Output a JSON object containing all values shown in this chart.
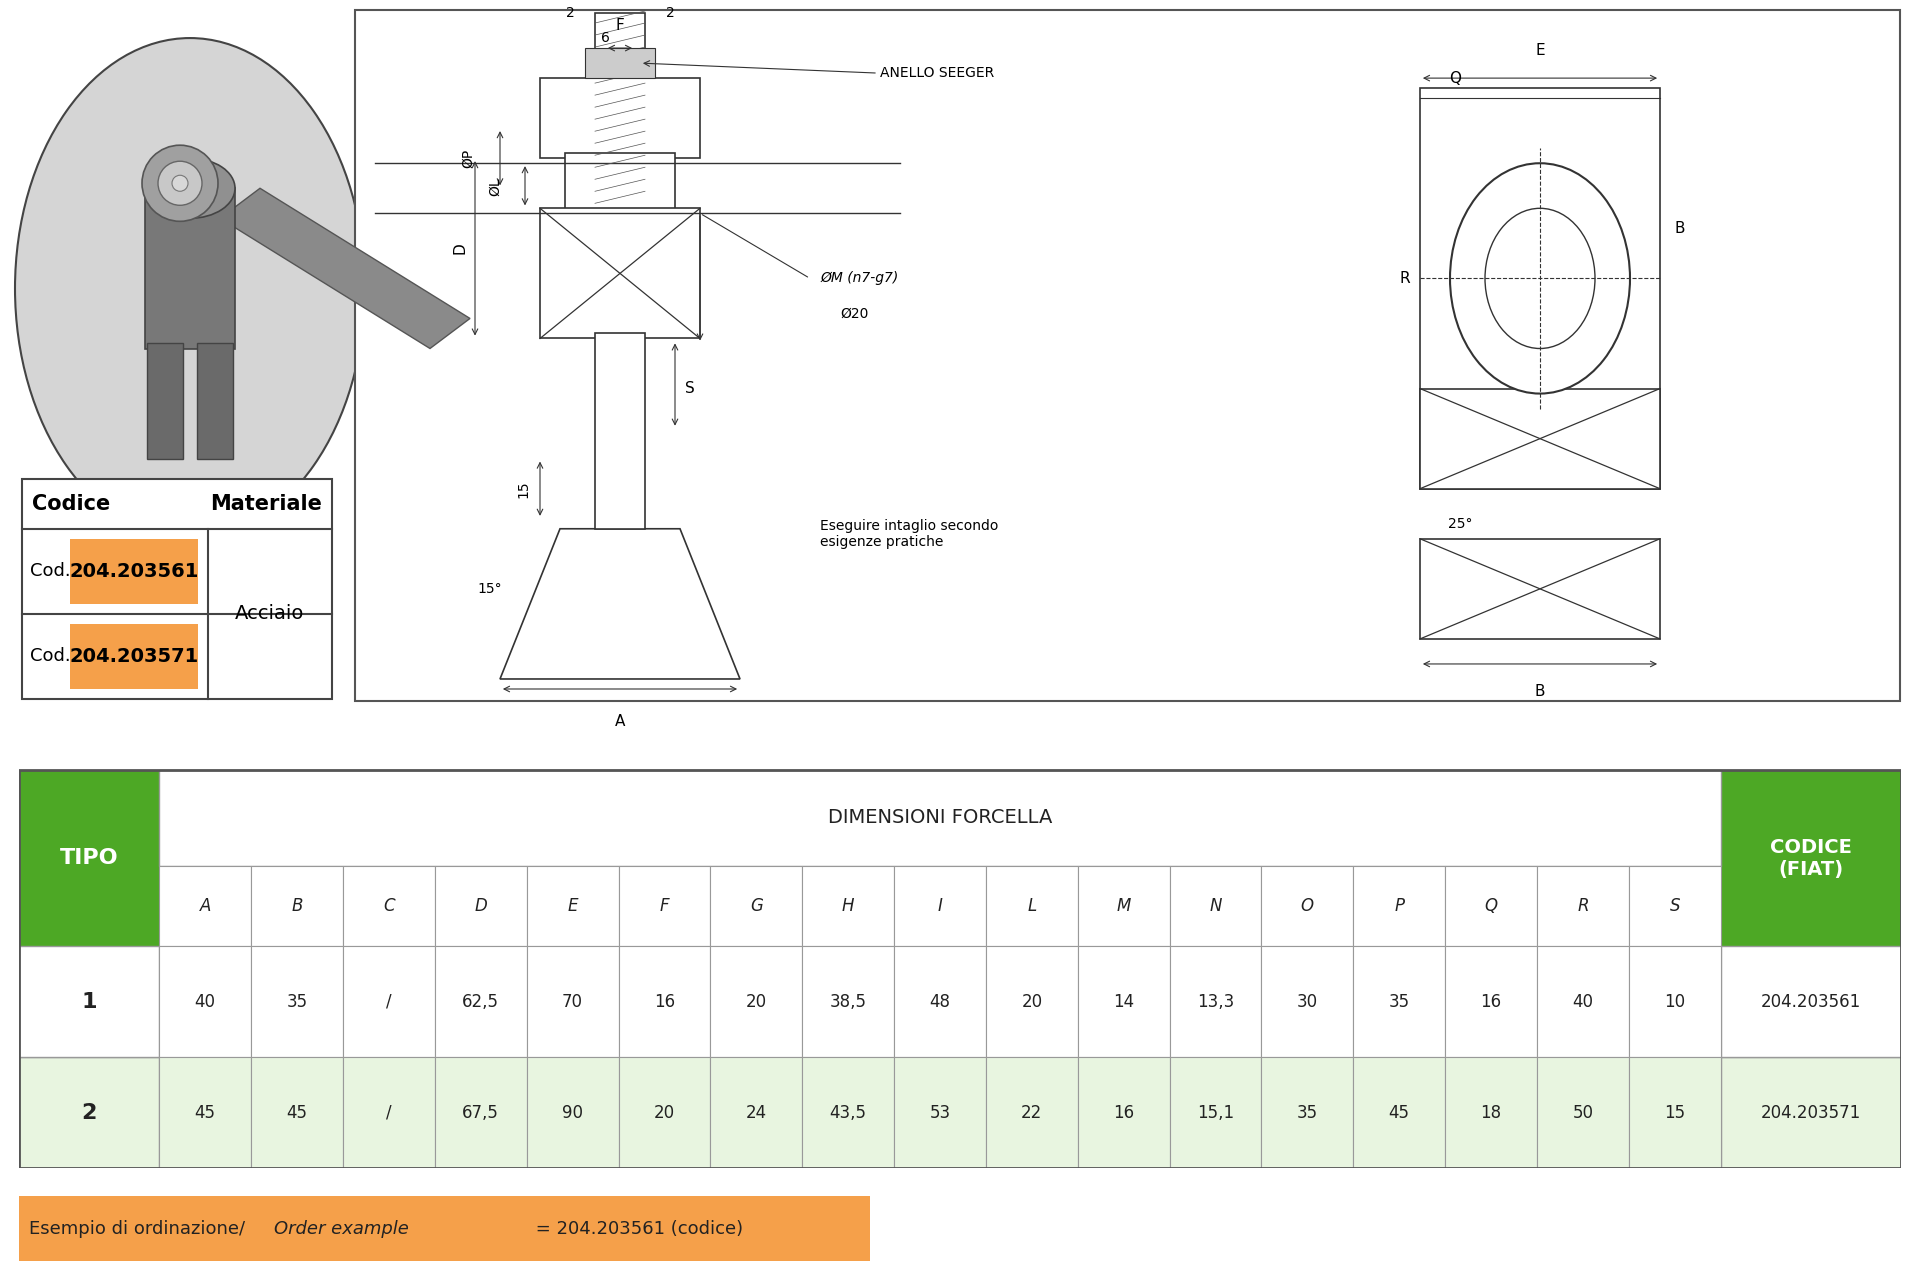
{
  "bg_color": "#ffffff",
  "green_color": "#4da825",
  "orange_color": "#f5a04a",
  "light_green_row": "#e8f5e0",
  "codice_orange": "#f5a04a",
  "circle_bg": "#d5d5d5",
  "codice_label": "Codice",
  "materiale_label": "Materiale",
  "cod1": "204.203561",
  "cod2": "204.203571",
  "materiale": "Acciaio",
  "dim_header": "DIMENSIONI FORCELLA",
  "tipo_label": "TIPO",
  "codice_fiat_label": "CODICE\n(FIAT)",
  "col_headers": [
    "A",
    "B",
    "C",
    "D",
    "E",
    "F",
    "G",
    "H",
    "I",
    "L",
    "M",
    "N",
    "O",
    "P",
    "Q",
    "R",
    "S"
  ],
  "row1_tipo": "1",
  "row1_vals": [
    "40",
    "35",
    "/",
    "62,5",
    "70",
    "16",
    "20",
    "38,5",
    "48",
    "20",
    "14",
    "13,3",
    "30",
    "35",
    "16",
    "40",
    "10"
  ],
  "row1_codice": "204.203561",
  "row2_tipo": "2",
  "row2_vals": [
    "45",
    "45",
    "/",
    "67,5",
    "90",
    "20",
    "24",
    "43,5",
    "53",
    "22",
    "16",
    "15,1",
    "35",
    "45",
    "18",
    "50",
    "15"
  ],
  "row2_codice": "204.203571",
  "esempio_text1": "Esempio di ordinazione/",
  "esempio_text2": "Order example",
  "esempio_text3": " = 204.203561 (codice)"
}
